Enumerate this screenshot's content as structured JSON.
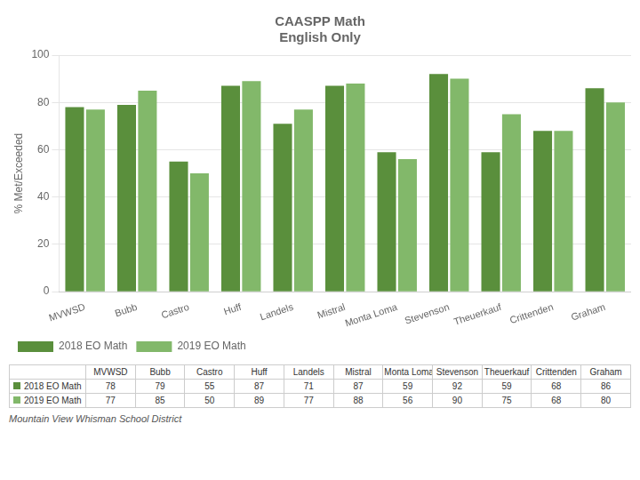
{
  "chart_data": {
    "type": "bar",
    "title": "CAASPP Math\nEnglish Only",
    "ylabel": "% Met/Exceeded",
    "categories": [
      "MVWSD",
      "Bubb",
      "Castro",
      "Huff",
      "Landels",
      "Mistral",
      "Monta Loma",
      "Stevenson",
      "Theuerkauf",
      "Crittenden",
      "Graham"
    ],
    "series": [
      {
        "name": "2018 EO Math",
        "color": "#5a8f3c",
        "values": [
          78,
          79,
          55,
          87,
          71,
          87,
          59,
          92,
          59,
          68,
          86
        ]
      },
      {
        "name": "2019 EO Math",
        "color": "#82b86a",
        "values": [
          77,
          85,
          50,
          89,
          77,
          88,
          56,
          90,
          75,
          68,
          80
        ]
      }
    ],
    "ylim": [
      0,
      100
    ],
    "yticks": [
      0,
      20,
      40,
      60,
      80,
      100
    ],
    "grid": true,
    "legend": "lower left",
    "annotations": [
      "Mountain View Whisman School District"
    ]
  }
}
